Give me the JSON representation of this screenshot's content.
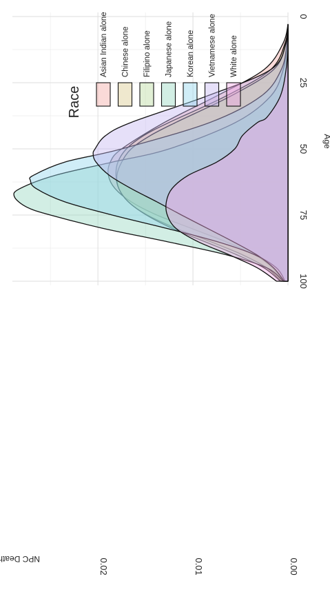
{
  "chart_data": {
    "type": "area",
    "subtype": "density",
    "orientation": "rotated-90",
    "xlabel": "Age",
    "ylabel": "NPC Death Count",
    "xlim": [
      0,
      100
    ],
    "ylim": [
      0,
      0.029
    ],
    "x_ticks": [
      0,
      25,
      50,
      75,
      100
    ],
    "y_ticks": [
      0.0,
      0.01,
      0.02
    ],
    "y_tick_labels": [
      "0.00",
      "0.01",
      "0.02"
    ],
    "grid": true,
    "legend": {
      "title": "Race",
      "placement": "top",
      "entries": [
        "Asian Indian alone",
        "Chinese alone",
        "Filipino alone",
        "Japanese alone",
        "Korean alone",
        "Vietnamese alone",
        "White alone"
      ]
    },
    "series": [
      {
        "name": "Asian Indian alone",
        "color": "#f4a7a3",
        "x": [
          3,
          10,
          20,
          30,
          40,
          50,
          55,
          60,
          65,
          70,
          75,
          80,
          85,
          90,
          95,
          100
        ],
        "y": [
          0,
          0.0005,
          0.0025,
          0.0075,
          0.013,
          0.0175,
          0.0187,
          0.0189,
          0.0182,
          0.0165,
          0.0138,
          0.0102,
          0.0066,
          0.0035,
          0.0016,
          0.0005
        ]
      },
      {
        "name": "Chinese alone",
        "color": "#d9c98a",
        "x": [
          3,
          10,
          20,
          30,
          40,
          45,
          50,
          55,
          60,
          65,
          70,
          75,
          80,
          85,
          90,
          95,
          100
        ],
        "y": [
          0,
          0.0003,
          0.0018,
          0.0065,
          0.0125,
          0.0152,
          0.017,
          0.0179,
          0.0181,
          0.0178,
          0.0168,
          0.0148,
          0.0118,
          0.0082,
          0.0048,
          0.0022,
          0.0007
        ]
      },
      {
        "name": "Filipino alone",
        "color": "#b7d99a",
        "x": [
          3,
          10,
          20,
          30,
          40,
          45,
          50,
          55,
          60,
          65,
          70,
          75,
          80,
          85,
          90,
          95,
          100
        ],
        "y": [
          0,
          0.0002,
          0.0015,
          0.006,
          0.0118,
          0.0145,
          0.0165,
          0.0175,
          0.018,
          0.0178,
          0.0168,
          0.0149,
          0.0122,
          0.0088,
          0.0054,
          0.0025,
          0.0008
        ]
      },
      {
        "name": "Japanese alone",
        "color": "#93d6bf",
        "x": [
          3,
          10,
          20,
          30,
          40,
          50,
          55,
          60,
          65,
          68,
          72,
          75,
          80,
          85,
          90,
          95,
          100
        ],
        "y": [
          0,
          0.0001,
          0.0005,
          0.0018,
          0.0055,
          0.0125,
          0.0185,
          0.0245,
          0.0282,
          0.0288,
          0.0275,
          0.025,
          0.0195,
          0.0128,
          0.0065,
          0.0022,
          0.0005
        ]
      },
      {
        "name": "Korean alone",
        "color": "#8fd3ec",
        "x": [
          3,
          10,
          20,
          30,
          40,
          50,
          55,
          60,
          62,
          65,
          70,
          75,
          80,
          85,
          90,
          95,
          100
        ],
        "y": [
          0,
          0.0001,
          0.0007,
          0.0028,
          0.0082,
          0.0175,
          0.0235,
          0.0268,
          0.0271,
          0.0265,
          0.0235,
          0.0185,
          0.0128,
          0.0075,
          0.0035,
          0.0012,
          0.0003
        ]
      },
      {
        "name": "Vietnamese alone",
        "color": "#c3b6f1",
        "x": [
          3,
          10,
          20,
          30,
          40,
          45,
          50,
          52,
          55,
          60,
          65,
          70,
          75,
          80,
          85,
          90,
          95,
          100
        ],
        "y": [
          0,
          0.0002,
          0.0018,
          0.0085,
          0.0165,
          0.0192,
          0.0203,
          0.0205,
          0.0202,
          0.0188,
          0.0165,
          0.0138,
          0.0112,
          0.0085,
          0.0058,
          0.0033,
          0.0015,
          0.0004
        ]
      },
      {
        "name": "White alone",
        "color": "#f2a6e4",
        "x": [
          3,
          10,
          20,
          30,
          38,
          40,
          45,
          50,
          55,
          60,
          65,
          70,
          75,
          80,
          85,
          90,
          95,
          100
        ],
        "y": [
          0,
          0,
          0.0002,
          0.0008,
          0.0022,
          0.0032,
          0.0048,
          0.0056,
          0.0075,
          0.0105,
          0.0122,
          0.0128,
          0.0127,
          0.0118,
          0.0095,
          0.0062,
          0.0032,
          0.0012
        ]
      }
    ]
  }
}
